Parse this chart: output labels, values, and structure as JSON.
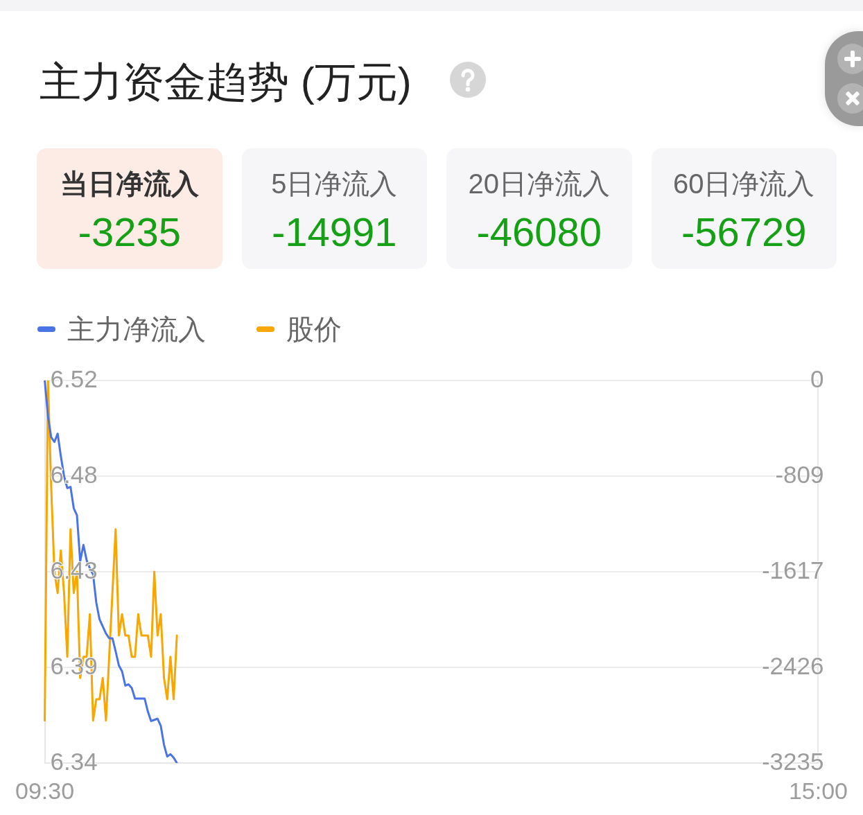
{
  "chart_data": [
    {
      "type": "other",
      "title": "主力资金趋势 (万元)",
      "annotations": [
        "当日净流入",
        "-3235",
        "5日净流入",
        "-14991",
        "20日净流入",
        "-46080",
        "60日净流入",
        "-56729"
      ]
    },
    {
      "type": "line",
      "categories": [
        "09:30",
        null,
        null,
        null,
        null,
        null,
        null,
        null,
        null,
        null,
        null,
        null,
        null,
        null,
        null,
        null,
        null,
        null,
        null,
        null,
        null,
        null,
        null,
        null,
        null,
        null,
        null,
        null,
        null,
        null,
        null,
        null,
        null,
        null,
        null,
        null,
        null,
        null,
        null,
        null,
        null,
        null,
        null,
        null,
        null,
        null,
        null,
        null,
        null,
        null,
        null,
        null,
        null,
        null,
        null,
        null,
        null,
        null,
        null,
        null,
        null,
        null,
        null,
        null,
        null,
        null,
        null,
        null,
        null,
        null,
        null,
        null,
        null,
        null,
        null,
        null,
        null,
        null,
        null,
        null,
        null,
        null,
        null,
        null,
        null,
        null,
        null,
        null,
        null,
        null,
        null,
        null,
        null,
        null,
        null,
        null,
        null,
        null,
        null,
        null,
        null,
        null,
        null,
        null,
        null,
        null,
        null,
        null,
        null,
        null,
        null,
        null,
        null,
        null,
        null,
        null,
        null,
        null,
        null,
        null,
        null,
        null,
        null,
        null,
        null,
        null,
        null,
        null,
        null,
        null,
        null,
        null,
        null,
        null,
        null,
        null,
        null,
        null,
        null,
        null,
        null,
        null,
        null,
        null,
        null,
        null,
        null,
        null,
        null,
        null,
        null,
        null,
        null,
        null,
        null,
        null,
        null,
        null,
        null,
        null,
        null,
        null,
        null,
        null,
        null,
        null,
        null,
        null,
        null,
        null,
        null,
        null,
        null,
        null,
        null,
        null,
        null,
        null,
        null,
        null,
        null,
        null,
        null,
        null,
        null,
        null,
        null,
        null,
        null,
        null,
        null,
        null,
        null,
        null,
        null,
        null,
        null,
        null,
        null,
        null,
        null,
        null,
        null,
        null,
        null,
        null,
        null,
        null,
        null,
        null,
        null,
        null,
        null,
        null,
        null,
        null,
        null,
        null,
        null,
        null,
        null,
        null,
        null,
        null,
        null,
        null,
        null,
        null,
        null,
        null,
        null,
        null,
        null,
        null,
        null,
        null,
        null,
        null,
        null,
        null,
        "15:00"
      ],
      "series": [
        {
          "name": "主力净流入",
          "color": "#4a73e6",
          "axis": "y2",
          "values": [
            0,
            -300,
            -480,
            -520,
            -450,
            -640,
            -810,
            -910,
            -900,
            -1080,
            -1140,
            -1530,
            -1390,
            -1520,
            -1590,
            -1640,
            -1880,
            -2020,
            -2080,
            -2140,
            -2180,
            -2180,
            -2290,
            -2410,
            -2460,
            -2580,
            -2570,
            -2600,
            -2690,
            -2690,
            -2690,
            -2690,
            -2800,
            -2880,
            -2870,
            -2860,
            -2920,
            -3080,
            -3180,
            -3160,
            -3190,
            -3235,
            null,
            null,
            null,
            null,
            null,
            null,
            null,
            null,
            null,
            null,
            null,
            null,
            null,
            null,
            null,
            null,
            null,
            null,
            null,
            null,
            null,
            null,
            null,
            null,
            null,
            null,
            null,
            null,
            null,
            null,
            null,
            null,
            null,
            null,
            null,
            null,
            null,
            null,
            null,
            null,
            null,
            null,
            null,
            null,
            null,
            null,
            null,
            null,
            null,
            null,
            null,
            null,
            null,
            null,
            null,
            null,
            null,
            null,
            null,
            null,
            null,
            null,
            null,
            null,
            null,
            null,
            null,
            null,
            null,
            null,
            null,
            null,
            null,
            null,
            null,
            null,
            null,
            null,
            null,
            null,
            null,
            null,
            null,
            null,
            null,
            null,
            null,
            null,
            null,
            null,
            null,
            null,
            null,
            null,
            null,
            null,
            null,
            null,
            null,
            null,
            null,
            null,
            null,
            null,
            null,
            null,
            null,
            null,
            null,
            null,
            null,
            null,
            null,
            null,
            null,
            null,
            null,
            null,
            null,
            null,
            null,
            null,
            null,
            null,
            null,
            null,
            null,
            null,
            null,
            null,
            null,
            null,
            null,
            null,
            null,
            null,
            null,
            null,
            null,
            null,
            null,
            null,
            null,
            null,
            null,
            null,
            null,
            null,
            null,
            null,
            null,
            null,
            null,
            null,
            null,
            null,
            null,
            null,
            null,
            null,
            null,
            null,
            null,
            null,
            null,
            null,
            null,
            null,
            null,
            null,
            null,
            null,
            null,
            null,
            null,
            null,
            null,
            null,
            null,
            null,
            null,
            null,
            null,
            null,
            null,
            null,
            null,
            null,
            null,
            null,
            null,
            null,
            null,
            null,
            null,
            null,
            null,
            null,
            null
          ]
        },
        {
          "name": "股价",
          "color": "#f8a600",
          "values": [
            6.36,
            6.52,
            6.47,
            6.43,
            6.42,
            6.44,
            6.42,
            6.39,
            6.45,
            6.42,
            6.43,
            6.38,
            6.39,
            6.39,
            6.41,
            6.36,
            6.37,
            6.37,
            6.38,
            6.36,
            6.39,
            6.42,
            6.45,
            6.4,
            6.41,
            6.4,
            6.4,
            6.39,
            6.39,
            6.41,
            6.4,
            6.4,
            6.4,
            6.39,
            6.43,
            6.4,
            6.41,
            6.38,
            6.37,
            6.39,
            6.37,
            6.4,
            null,
            null,
            null,
            null,
            null,
            null,
            null,
            null,
            null,
            null,
            null,
            null,
            null,
            null,
            null,
            null,
            null,
            null,
            null,
            null,
            null,
            null,
            null,
            null,
            null,
            null,
            null,
            null,
            null,
            null,
            null,
            null,
            null,
            null,
            null,
            null,
            null,
            null,
            null,
            null,
            null,
            null,
            null,
            null,
            null,
            null,
            null,
            null,
            null,
            null,
            null,
            null,
            null,
            null,
            null,
            null,
            null,
            null,
            null,
            null,
            null,
            null,
            null,
            null,
            null,
            null,
            null,
            null,
            null,
            null,
            null,
            null,
            null,
            null,
            null,
            null,
            null,
            null,
            null,
            null,
            null,
            null,
            null,
            null,
            null,
            null,
            null,
            null,
            null,
            null,
            null,
            null,
            null,
            null,
            null,
            null,
            null,
            null,
            null,
            null,
            null,
            null,
            null,
            null,
            null,
            null,
            null,
            null,
            null,
            null,
            null,
            null,
            null,
            null,
            null,
            null,
            null,
            null,
            null,
            null,
            null,
            null,
            null,
            null,
            null,
            null,
            null,
            null,
            null,
            null,
            null,
            null,
            null,
            null,
            null,
            null,
            null,
            null,
            null,
            null,
            null,
            null,
            null,
            null,
            null,
            null,
            null,
            null,
            null,
            null,
            null,
            null,
            null,
            null,
            null,
            null,
            null,
            null,
            null,
            null,
            null,
            null,
            null,
            null,
            null,
            null,
            null,
            null,
            null,
            null,
            null,
            null,
            null,
            null,
            null,
            null,
            null,
            null,
            null,
            null,
            null,
            null,
            null,
            null,
            null,
            null,
            null,
            null,
            null,
            null,
            null,
            null,
            null,
            null,
            null,
            null,
            null,
            null,
            null
          ]
        }
      ],
      "ylim": [
        6.34,
        6.52
      ],
      "yticks": [
        6.52,
        {
          "value": 6.475,
          "label": "6.48"
        },
        6.43,
        {
          "value": 6.385,
          "label": "6.39"
        },
        6.34
      ],
      "y2lim": [
        -3235,
        0
      ],
      "y2ticks": [
        0,
        {
          "value": -808.75,
          "label": "-809"
        },
        {
          "value": -1617.5,
          "label": "-1617"
        },
        {
          "value": -2426.25,
          "label": "-2426"
        },
        -3235
      ],
      "grid": "y",
      "legend": "top left",
      "marker": "none"
    }
  ]
}
